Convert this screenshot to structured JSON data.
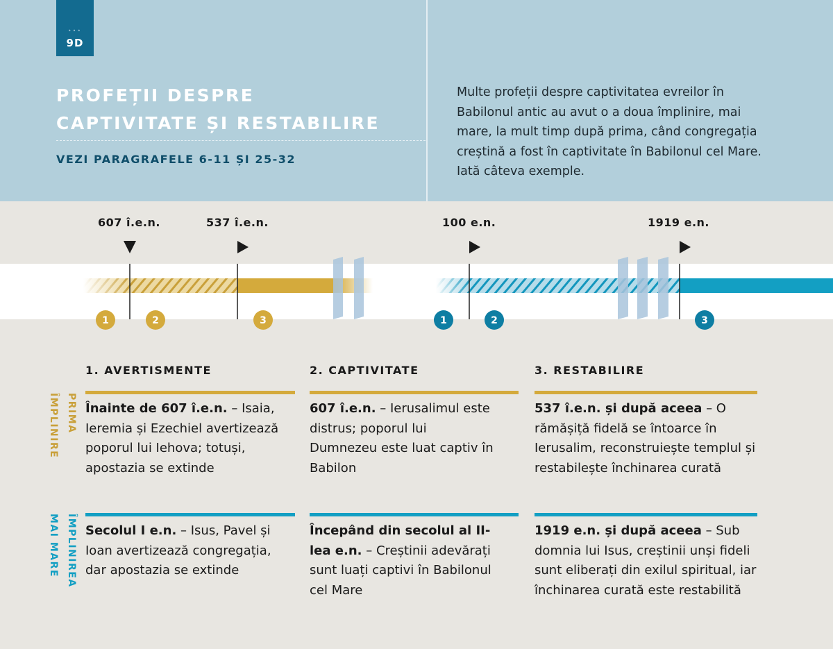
{
  "badge": {
    "dots": "•••",
    "number": "9D"
  },
  "header": {
    "title_line1": "PROFEȚII DESPRE",
    "title_line2": "CAPTIVITATE ȘI RESTABILIRE",
    "subtitle": "VEZI PARAGRAFELE 6-11 ȘI 25-32",
    "intro": "Multe profeții despre captivitatea evreilor în Babilonul antic au avut o a doua împlinire, mai mare, la mult timp după prima, când congregația creștină a fost în captivitate în Babilonul cel Mare. Iată câteva exemple."
  },
  "timeline": {
    "dates": [
      "607 î.e.n.",
      "537 î.e.n.",
      "100 e.n.",
      "1919 e.n."
    ],
    "circles_first": [
      "1",
      "2",
      "3"
    ],
    "circles_greater": [
      "1",
      "2",
      "3"
    ]
  },
  "colors": {
    "gold": "#d4aa3c",
    "blue": "#139fc3",
    "dark_blue": "#0e7ea3",
    "header_bg": "#b2cfdb"
  },
  "columns": [
    "1. AVERTISMENTE",
    "2. CAPTIVITATE",
    "3. RESTABILIRE"
  ],
  "rows": {
    "first": {
      "label_line1": "PRIMA",
      "label_line2": "ÎMPLINIRE",
      "cells": [
        {
          "bold": "Înainte de 607 î.e.n.",
          "text": " – Isaia, Ieremia și Ezechiel avertizează poporul lui Iehova; totuși, apostazia se extinde"
        },
        {
          "bold": "607 î.e.n.",
          "text": " – Ierusalimul este distrus; poporul lui Dumnezeu este luat captiv în Babilon"
        },
        {
          "bold": "537 î.e.n. și după aceea",
          "text": " – O rămășiță fidelă se întoarce în Ierusalim, reconstruiește templul și restabilește închinarea curată"
        }
      ]
    },
    "greater": {
      "label_line1": "ÎMPLINIREA",
      "label_line2": "MAI MARE",
      "cells": [
        {
          "bold": "Secolul I e.n.",
          "text": " – Isus, Pavel și Ioan avertizează congregația, dar apostazia se extinde"
        },
        {
          "bold": "Începând din secolul al II-lea e.n.",
          "text": " – Creștinii adevărați sunt luați captivi în Babilonul cel Mare"
        },
        {
          "bold": "1919 e.n. și după aceea",
          "text": " – Sub domnia lui Isus, creștinii unși fideli sunt eliberați din exilul spiritual, iar închinarea curată este restabilită"
        }
      ]
    }
  }
}
